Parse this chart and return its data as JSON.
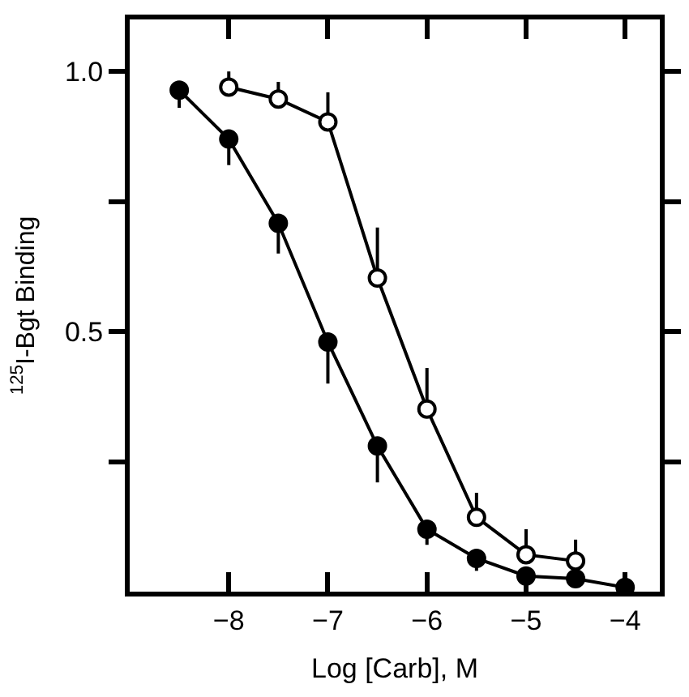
{
  "chart_data": {
    "type": "line",
    "xlabel": "Log [Carb], M",
    "ylabel": "$^{125}$I-Bgt Binding",
    "xlim": [
      -9.0,
      -3.65
    ],
    "xticks": [
      -8,
      -7,
      -6,
      -5,
      -4
    ],
    "ylim": [
      0,
      1.1
    ],
    "yticks": [
      {
        "value": 0.25,
        "label": null
      },
      0.5,
      {
        "value": 0.75,
        "label": null
      },
      {
        "value": 1,
        "label": "1.0"
      }
    ],
    "marker": "circle",
    "line_style": "solid",
    "series": [
      {
        "color": "#000000",
        "x": [
          -8.5,
          -8,
          -7.5,
          -7,
          -6.5,
          -6,
          -5.5,
          -5,
          -4.5,
          -4
        ],
        "values": [
          0.964,
          0.87,
          0.708,
          0.48,
          0.28,
          0.12,
          0.064,
          0.03,
          0.025,
          0.008
        ],
        "errors": [
          [
            0.93,
            0.964
          ],
          [
            0.82,
            0.87
          ],
          [
            0.65,
            0.708
          ],
          [
            0.4,
            0.48
          ],
          [
            0.21,
            0.28
          ],
          [
            0.09,
            0.12
          ],
          [
            0.04,
            0.064
          ],
          null,
          null,
          null
        ]
      },
      {
        "color": "#ffffff",
        "x": [
          -8,
          -7.5,
          -7,
          -6.5,
          -6,
          -5.5,
          -5,
          -4.5
        ],
        "values": [
          0.97,
          0.947,
          0.903,
          0.603,
          0.351,
          0.143,
          0.071,
          0.059
        ],
        "errors": [
          [
            0.97,
            1.0
          ],
          [
            0.947,
            0.98
          ],
          [
            0.903,
            0.96
          ],
          [
            0.603,
            0.7
          ],
          [
            0.351,
            0.43
          ],
          [
            0.143,
            0.19
          ],
          [
            0.071,
            0.12
          ],
          [
            0.059,
            0.1
          ]
        ]
      }
    ]
  }
}
